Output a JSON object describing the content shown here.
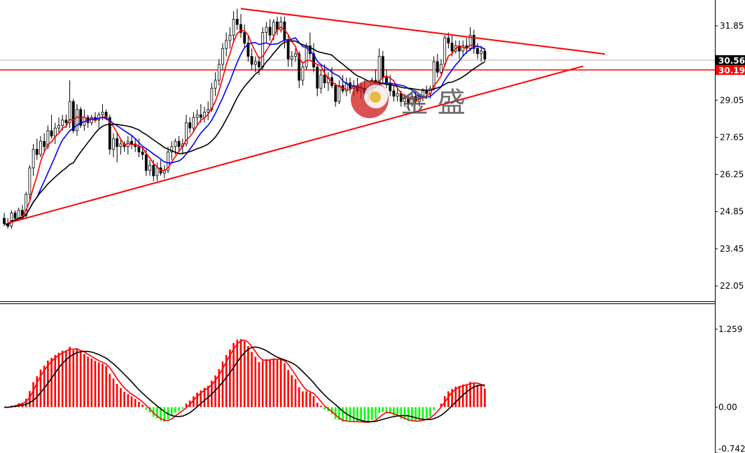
{
  "chart_data": [
    {
      "type": "candlestick",
      "panel": "price",
      "y_ticks": [
        "31.85",
        "29.05",
        "27.65",
        "26.25",
        "24.85",
        "23.45",
        "22.05"
      ],
      "price_tags": [
        {
          "label": "30.56",
          "value": 30.56,
          "style": "black-box"
        },
        {
          "label": "30.19",
          "value": 30.19,
          "style": "red-box"
        }
      ],
      "horizontal_levels": [
        {
          "value": 30.19,
          "color": "#ff0000"
        },
        {
          "value": 30.56,
          "color": "#b0b0b0"
        }
      ],
      "trendlines": [
        {
          "from": {
            "bar": 1,
            "price": 24.42
          },
          "to": {
            "bar": 159,
            "price": 30.33
          },
          "color": "#ff0000"
        },
        {
          "from": {
            "bar": 65,
            "price": 32.5
          },
          "to": {
            "bar": 165,
            "price": 30.79
          },
          "color": "#ff0000"
        }
      ],
      "candles": [
        [
          24.6,
          24.8,
          24.3,
          24.4
        ],
        [
          24.4,
          24.6,
          24.2,
          24.3
        ],
        [
          24.3,
          24.9,
          24.2,
          24.8
        ],
        [
          24.8,
          24.9,
          24.5,
          24.6
        ],
        [
          24.6,
          25.0,
          24.5,
          24.9
        ],
        [
          24.9,
          25.1,
          24.6,
          24.7
        ],
        [
          24.7,
          25.6,
          24.6,
          25.5
        ],
        [
          25.5,
          26.6,
          25.3,
          26.5
        ],
        [
          26.5,
          27.4,
          26.2,
          27.2
        ],
        [
          27.2,
          27.6,
          26.8,
          27.0
        ],
        [
          27.0,
          27.7,
          26.9,
          27.5
        ],
        [
          27.5,
          27.8,
          27.1,
          27.3
        ],
        [
          27.3,
          28.1,
          27.2,
          27.9
        ],
        [
          27.9,
          28.5,
          27.6,
          27.7
        ],
        [
          27.7,
          28.2,
          27.4,
          28.0
        ],
        [
          28.0,
          28.4,
          27.8,
          28.1
        ],
        [
          28.1,
          28.5,
          27.9,
          28.3
        ],
        [
          28.3,
          28.5,
          28.0,
          28.2
        ],
        [
          28.2,
          29.8,
          28.0,
          29.0
        ],
        [
          29.0,
          29.1,
          27.8,
          27.9
        ],
        [
          27.9,
          28.9,
          27.7,
          28.7
        ],
        [
          28.7,
          28.8,
          28.0,
          28.1
        ],
        [
          28.1,
          28.7,
          27.9,
          28.4
        ],
        [
          28.4,
          28.5,
          28.0,
          28.2
        ],
        [
          28.2,
          28.5,
          28.1,
          28.4
        ],
        [
          28.4,
          28.6,
          28.2,
          28.3
        ],
        [
          28.3,
          28.6,
          28.0,
          28.5
        ],
        [
          28.5,
          28.9,
          28.3,
          28.6
        ],
        [
          28.6,
          28.7,
          28.3,
          28.4
        ],
        [
          28.4,
          28.5,
          27.0,
          27.2
        ],
        [
          27.2,
          27.8,
          26.9,
          27.6
        ],
        [
          27.6,
          27.8,
          26.7,
          27.3
        ],
        [
          27.3,
          27.6,
          27.0,
          27.4
        ],
        [
          27.4,
          27.5,
          27.1,
          27.3
        ],
        [
          27.3,
          27.7,
          27.0,
          27.5
        ],
        [
          27.5,
          27.7,
          27.2,
          27.4
        ],
        [
          27.4,
          27.6,
          27.1,
          27.3
        ],
        [
          27.3,
          27.6,
          26.9,
          27.1
        ],
        [
          27.1,
          27.3,
          26.8,
          27.0
        ],
        [
          27.0,
          27.2,
          26.2,
          26.4
        ],
        [
          26.4,
          26.8,
          26.2,
          26.6
        ],
        [
          26.6,
          26.8,
          26.0,
          26.2
        ],
        [
          26.2,
          26.7,
          26.0,
          26.5
        ],
        [
          26.5,
          26.8,
          26.2,
          26.3
        ],
        [
          26.3,
          26.6,
          26.1,
          26.4
        ],
        [
          26.4,
          27.3,
          26.3,
          27.1
        ],
        [
          27.1,
          27.5,
          26.8,
          27.3
        ],
        [
          27.3,
          27.6,
          27.0,
          27.5
        ],
        [
          27.5,
          27.7,
          27.1,
          27.3
        ],
        [
          27.3,
          27.6,
          27.0,
          27.4
        ],
        [
          27.4,
          28.5,
          27.3,
          28.2
        ],
        [
          28.2,
          28.4,
          27.8,
          28.0
        ],
        [
          28.0,
          28.6,
          27.9,
          28.4
        ],
        [
          28.4,
          28.7,
          28.1,
          28.5
        ],
        [
          28.5,
          28.9,
          28.2,
          28.4
        ],
        [
          28.4,
          28.8,
          28.2,
          28.6
        ],
        [
          28.6,
          29.0,
          28.3,
          28.7
        ],
        [
          28.7,
          29.7,
          28.6,
          29.5
        ],
        [
          29.5,
          30.1,
          29.2,
          29.8
        ],
        [
          29.8,
          30.6,
          29.6,
          30.4
        ],
        [
          30.4,
          31.2,
          30.2,
          31.0
        ],
        [
          31.0,
          31.6,
          30.7,
          31.3
        ],
        [
          31.3,
          31.8,
          31.0,
          31.5
        ],
        [
          31.5,
          32.4,
          31.2,
          32.1
        ],
        [
          32.1,
          32.5,
          31.7,
          31.9
        ],
        [
          31.9,
          32.3,
          31.4,
          31.6
        ],
        [
          31.6,
          31.9,
          31.0,
          31.2
        ],
        [
          31.2,
          31.5,
          30.5,
          30.7
        ],
        [
          30.7,
          31.0,
          30.2,
          30.4
        ],
        [
          30.4,
          30.7,
          30.1,
          30.5
        ],
        [
          30.5,
          30.7,
          30.0,
          30.3
        ],
        [
          30.3,
          31.8,
          30.2,
          31.6
        ],
        [
          31.6,
          32.0,
          31.2,
          31.8
        ],
        [
          31.8,
          32.1,
          31.3,
          31.5
        ],
        [
          31.5,
          32.1,
          31.3,
          32.0
        ],
        [
          32.0,
          32.2,
          31.5,
          31.7
        ],
        [
          31.7,
          32.2,
          31.6,
          32.0
        ],
        [
          32.0,
          32.2,
          31.0,
          31.3
        ],
        [
          31.3,
          31.5,
          30.3,
          30.6
        ],
        [
          30.6,
          30.9,
          30.3,
          30.7
        ],
        [
          30.7,
          31.0,
          30.5,
          30.8
        ],
        [
          30.8,
          30.9,
          29.5,
          29.8
        ],
        [
          29.8,
          30.5,
          29.6,
          30.3
        ],
        [
          30.3,
          31.2,
          30.2,
          31.1
        ],
        [
          31.1,
          31.6,
          30.6,
          30.8
        ],
        [
          30.8,
          31.2,
          30.1,
          30.3
        ],
        [
          30.3,
          30.4,
          29.2,
          29.5
        ],
        [
          29.5,
          30.2,
          29.3,
          30.0
        ],
        [
          30.0,
          30.4,
          29.5,
          29.7
        ],
        [
          29.7,
          30.1,
          29.4,
          29.9
        ],
        [
          29.9,
          30.3,
          29.5,
          29.6
        ],
        [
          29.6,
          29.7,
          28.8,
          29.0
        ],
        [
          29.0,
          29.8,
          28.9,
          29.6
        ],
        [
          29.6,
          30.0,
          29.3,
          29.4
        ],
        [
          29.4,
          29.9,
          29.2,
          29.7
        ],
        [
          29.7,
          29.9,
          29.3,
          29.5
        ],
        [
          29.5,
          29.8,
          29.2,
          29.6
        ],
        [
          29.6,
          29.9,
          29.3,
          29.4
        ],
        [
          29.4,
          29.7,
          29.1,
          29.5
        ],
        [
          29.5,
          29.8,
          29.2,
          29.3
        ],
        [
          29.3,
          29.6,
          29.0,
          29.4
        ],
        [
          29.4,
          29.9,
          29.3,
          29.8
        ],
        [
          29.8,
          30.2,
          29.5,
          29.7
        ],
        [
          29.7,
          31.0,
          29.6,
          30.7
        ],
        [
          30.7,
          30.9,
          29.7,
          29.9
        ],
        [
          29.9,
          30.2,
          29.5,
          29.7
        ],
        [
          29.7,
          30.0,
          29.2,
          29.4
        ],
        [
          29.4,
          29.6,
          29.0,
          29.2
        ],
        [
          29.2,
          29.5,
          29.0,
          29.3
        ],
        [
          29.3,
          29.4,
          28.8,
          29.0
        ],
        [
          29.0,
          29.3,
          28.8,
          29.1
        ],
        [
          29.1,
          29.2,
          28.7,
          28.9
        ],
        [
          28.9,
          29.3,
          28.8,
          29.2
        ],
        [
          29.2,
          29.4,
          28.9,
          29.0
        ],
        [
          29.0,
          29.3,
          28.8,
          29.2
        ],
        [
          29.2,
          29.5,
          29.0,
          29.4
        ],
        [
          29.4,
          29.6,
          29.1,
          29.3
        ],
        [
          29.3,
          29.6,
          29.1,
          29.5
        ],
        [
          29.5,
          30.7,
          29.4,
          30.5
        ],
        [
          30.5,
          30.8,
          29.9,
          30.1
        ],
        [
          30.1,
          30.6,
          30.0,
          30.4
        ],
        [
          30.4,
          31.5,
          30.3,
          31.4
        ],
        [
          31.4,
          31.6,
          31.0,
          31.2
        ],
        [
          31.2,
          31.5,
          30.7,
          30.9
        ],
        [
          30.9,
          31.3,
          30.8,
          31.1
        ],
        [
          31.1,
          31.3,
          30.6,
          30.9
        ],
        [
          30.9,
          31.3,
          30.7,
          31.1
        ],
        [
          31.1,
          31.4,
          30.8,
          31.0
        ],
        [
          31.0,
          31.8,
          30.9,
          31.5
        ],
        [
          31.5,
          31.7,
          30.8,
          31.0
        ],
        [
          31.0,
          31.2,
          30.6,
          30.8
        ],
        [
          30.8,
          31.1,
          30.5,
          30.9
        ],
        [
          30.9,
          31.0,
          30.5,
          30.6
        ]
      ],
      "moving_averages": [
        {
          "color": "#ff0000",
          "period": 5
        },
        {
          "color": "#0000ff",
          "period": 10
        },
        {
          "color": "#000000",
          "period": 20
        }
      ],
      "watermark_text": "金 盛"
    },
    {
      "type": "macd",
      "panel": "indicator",
      "y_ticks": [
        "1.259",
        "0.00",
        "-0.742"
      ],
      "y_range": [
        -0.742,
        1.259
      ],
      "histogram_positive_color": "#ff0000",
      "histogram_negative_color": "#00ff00",
      "signal_colors": {
        "fast": "#ff0000",
        "slow": "#000000"
      }
    }
  ]
}
